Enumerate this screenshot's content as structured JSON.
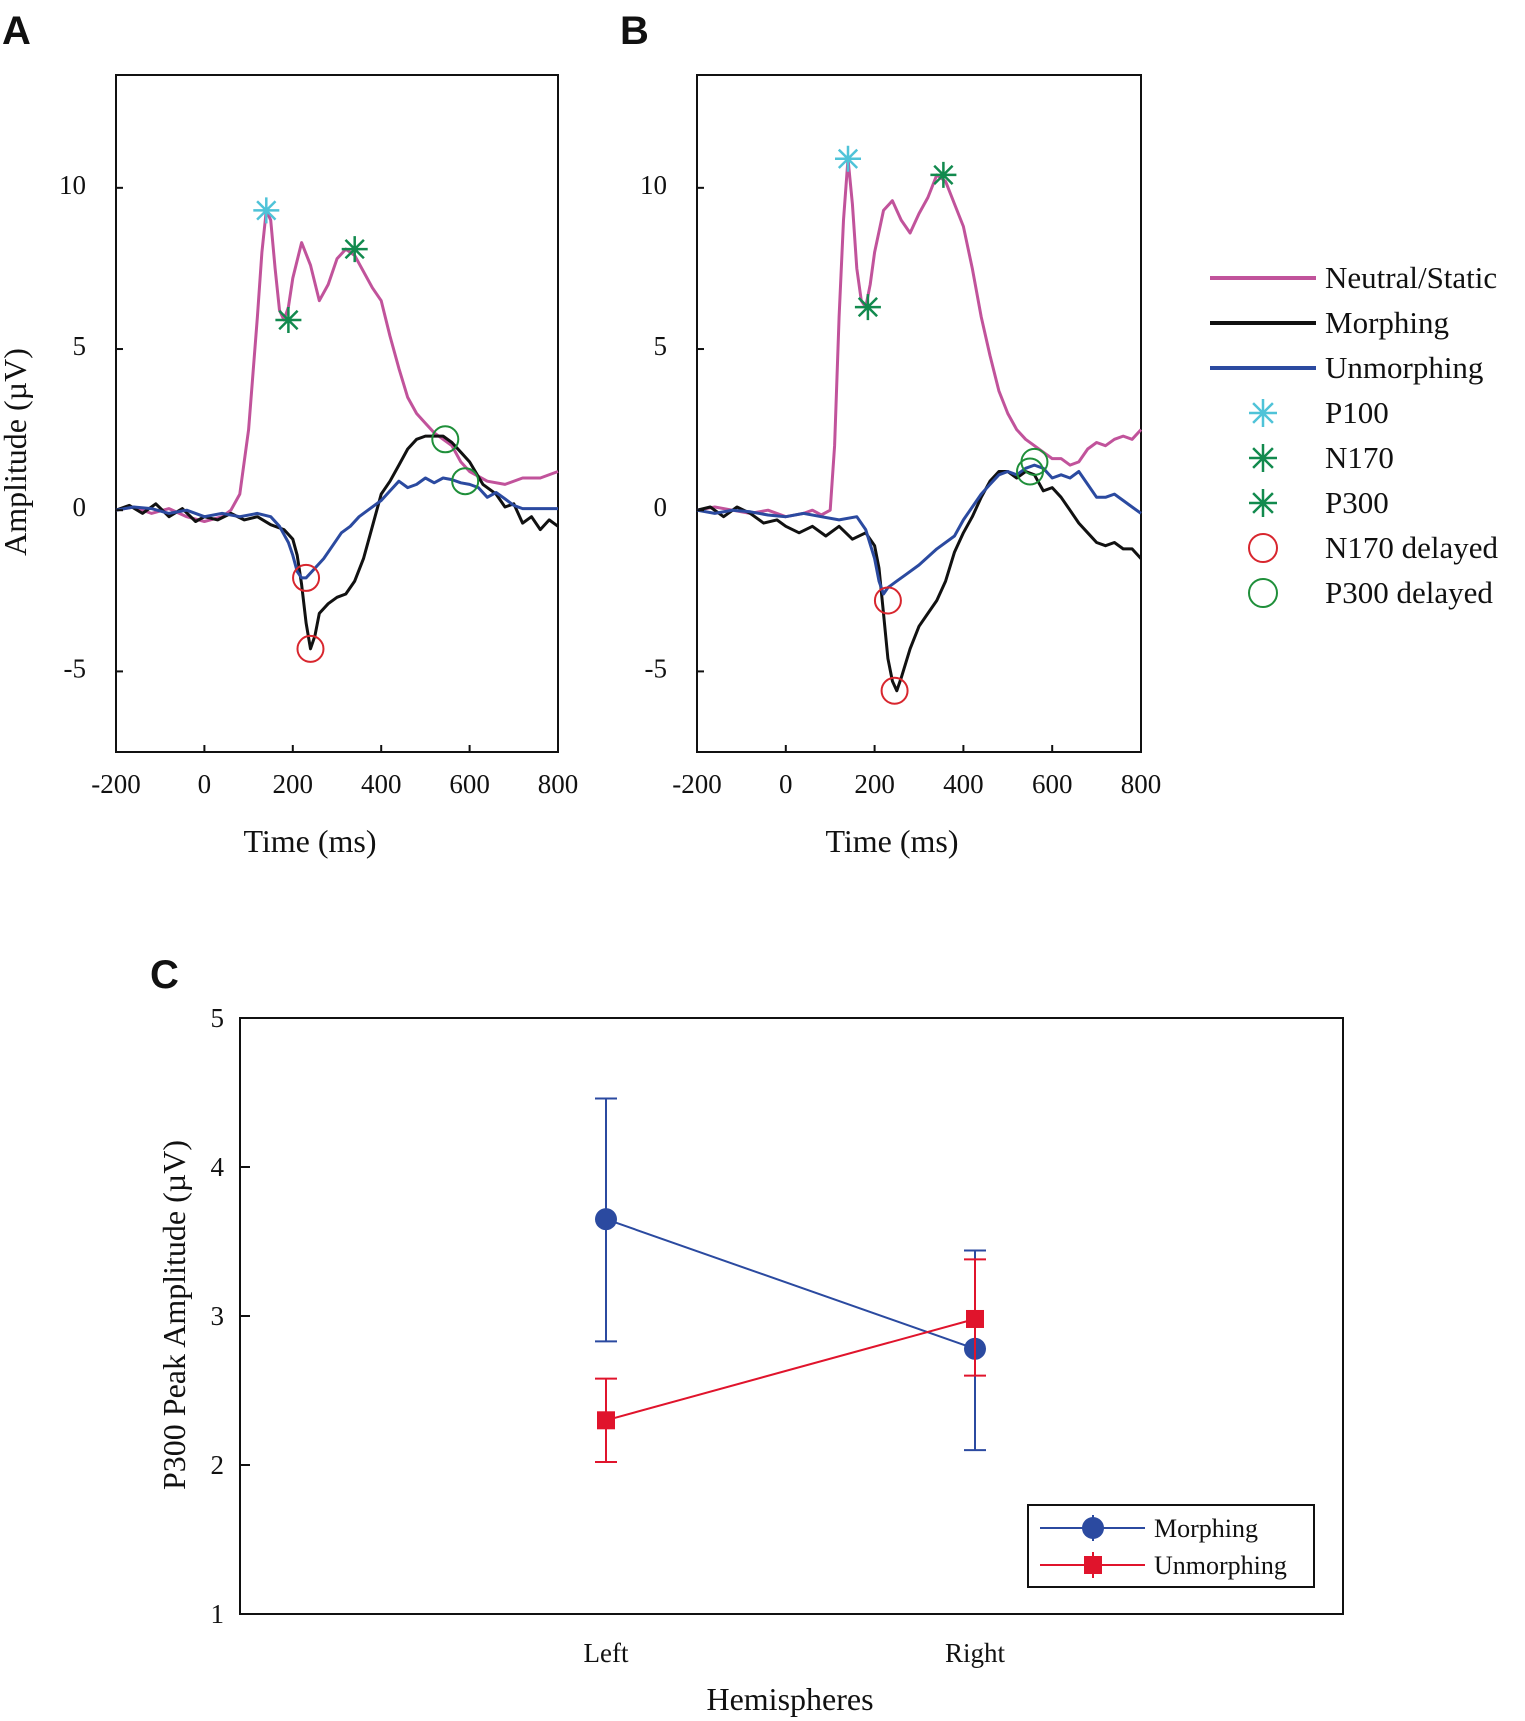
{
  "chart_data": [
    {
      "panel": "A",
      "type": "line",
      "xlabel": "Time (ms)",
      "ylabel": "Amplitude (µV)",
      "xlim": [
        -200,
        800
      ],
      "ylim": [
        -7.5,
        13.5
      ],
      "x_ticks": [
        -200,
        0,
        200,
        400,
        600,
        800
      ],
      "x_tick_labels": [
        "-200",
        "0",
        "200",
        "400",
        "600",
        "800"
      ],
      "y_ticks": [
        -5,
        0,
        5,
        10
      ],
      "y_tick_labels": [
        "-5",
        "0",
        "5",
        "10"
      ],
      "series": [
        {
          "name": "Neutral/Static",
          "color": "#c1539b",
          "x": [
            -200,
            -160,
            -120,
            -80,
            -40,
            0,
            40,
            60,
            80,
            100,
            120,
            130,
            140,
            150,
            160,
            170,
            180,
            190,
            200,
            220,
            240,
            260,
            280,
            300,
            320,
            340,
            380,
            400,
            420,
            440,
            460,
            480,
            500,
            520,
            540,
            560,
            580,
            600,
            640,
            680,
            720,
            760,
            800
          ],
          "y": [
            0,
            0.1,
            -0.1,
            0.05,
            -0.2,
            -0.35,
            -0.2,
            0,
            0.5,
            2.5,
            6,
            8,
            9.3,
            9,
            7.5,
            6.2,
            5.9,
            6.3,
            7.2,
            8.3,
            7.6,
            6.5,
            7,
            7.8,
            8.1,
            7.9,
            6.9,
            6.5,
            5.4,
            4.4,
            3.5,
            3,
            2.7,
            2.4,
            2.2,
            2,
            1.5,
            1.2,
            0.9,
            0.8,
            1,
            1,
            1.2
          ]
        },
        {
          "name": "Morphing",
          "color": "#111111",
          "x": [
            -200,
            -170,
            -140,
            -110,
            -80,
            -50,
            -20,
            0,
            30,
            60,
            90,
            120,
            150,
            180,
            200,
            210,
            220,
            230,
            240,
            250,
            260,
            280,
            300,
            320,
            340,
            360,
            380,
            400,
            420,
            440,
            460,
            480,
            500,
            520,
            540,
            560,
            580,
            600,
            630,
            660,
            680,
            700,
            720,
            740,
            760,
            780,
            800
          ],
          "y": [
            0,
            0.15,
            -0.1,
            0.2,
            -0.2,
            0.05,
            -0.35,
            -0.2,
            -0.3,
            -0.1,
            -0.3,
            -0.2,
            -0.45,
            -0.6,
            -0.9,
            -1.4,
            -2.3,
            -3.5,
            -4.3,
            -3.9,
            -3.2,
            -2.9,
            -2.7,
            -2.6,
            -2.2,
            -1.5,
            -0.5,
            0.5,
            0.9,
            1.4,
            1.9,
            2.2,
            2.3,
            2.3,
            2.3,
            2.1,
            1.8,
            1.5,
            0.8,
            0.5,
            0.1,
            0.2,
            -0.4,
            -0.2,
            -0.6,
            -0.3,
            -0.5
          ]
        },
        {
          "name": "Unmorphing",
          "color": "#2b4aa0",
          "x": [
            -200,
            -160,
            -120,
            -80,
            -40,
            0,
            40,
            80,
            120,
            150,
            170,
            190,
            200,
            210,
            220,
            230,
            250,
            270,
            290,
            310,
            330,
            350,
            370,
            400,
            420,
            440,
            460,
            480,
            500,
            520,
            540,
            560,
            580,
            600,
            620,
            640,
            660,
            680,
            700,
            720,
            760,
            800
          ],
          "y": [
            0,
            0.1,
            0.05,
            -0.1,
            0,
            -0.2,
            -0.1,
            -0.2,
            -0.1,
            -0.2,
            -0.5,
            -1,
            -1.4,
            -1.9,
            -2.1,
            -2.1,
            -1.8,
            -1.5,
            -1.1,
            -0.7,
            -0.5,
            -0.2,
            0,
            0.3,
            0.6,
            0.9,
            0.7,
            0.8,
            1,
            0.85,
            1,
            0.95,
            0.85,
            0.8,
            0.7,
            0.4,
            0.55,
            0.35,
            0.15,
            0.05,
            0.05,
            0.05
          ]
        }
      ],
      "markers": [
        {
          "type": "P100",
          "x": 140,
          "y": 9.3
        },
        {
          "type": "N170",
          "x": 190,
          "y": 5.9
        },
        {
          "type": "P300",
          "x": 340,
          "y": 8.1
        },
        {
          "type": "N170 delayed",
          "x": 230,
          "y": -2.1
        },
        {
          "type": "N170 delayed",
          "x": 240,
          "y": -4.3
        },
        {
          "type": "P300 delayed",
          "x": 545,
          "y": 2.2
        },
        {
          "type": "P300 delayed",
          "x": 590,
          "y": 0.9
        }
      ]
    },
    {
      "panel": "B",
      "type": "line",
      "xlabel": "Time (ms)",
      "ylabel": "",
      "xlim": [
        -200,
        800
      ],
      "ylim": [
        -7.5,
        13.5
      ],
      "x_ticks": [
        -200,
        0,
        200,
        400,
        600,
        800
      ],
      "x_tick_labels": [
        "-200",
        "0",
        "200",
        "400",
        "600",
        "800"
      ],
      "y_ticks": [
        -5,
        0,
        5,
        10
      ],
      "y_tick_labels": [
        "-5",
        "0",
        "5",
        "10"
      ],
      "series": [
        {
          "name": "Neutral/Static",
          "color": "#c1539b",
          "x": [
            -200,
            -160,
            -120,
            -80,
            -40,
            0,
            40,
            60,
            80,
            100,
            110,
            120,
            130,
            140,
            150,
            160,
            170,
            180,
            190,
            200,
            220,
            240,
            260,
            280,
            300,
            320,
            340,
            360,
            380,
            400,
            420,
            440,
            460,
            480,
            500,
            520,
            540,
            560,
            580,
            600,
            620,
            640,
            660,
            680,
            700,
            720,
            740,
            760,
            780,
            800
          ],
          "y": [
            0,
            0.1,
            0,
            -0.1,
            0,
            -0.2,
            -0.1,
            0,
            -0.15,
            0,
            2,
            6,
            9,
            10.9,
            9.5,
            7.5,
            6.5,
            6.3,
            7,
            8,
            9.3,
            9.6,
            9,
            8.6,
            9.2,
            9.7,
            10.4,
            10.2,
            9.5,
            8.8,
            7.5,
            6,
            4.8,
            3.7,
            3,
            2.5,
            2.2,
            2,
            1.8,
            1.6,
            1.6,
            1.4,
            1.5,
            1.9,
            2.1,
            2,
            2.2,
            2.3,
            2.2,
            2.5
          ]
        },
        {
          "name": "Morphing",
          "color": "#111111",
          "x": [
            -200,
            -170,
            -140,
            -110,
            -80,
            -50,
            -20,
            0,
            30,
            60,
            90,
            120,
            150,
            180,
            200,
            210,
            220,
            230,
            240,
            250,
            260,
            280,
            300,
            320,
            340,
            360,
            380,
            400,
            420,
            440,
            460,
            480,
            500,
            520,
            540,
            560,
            580,
            600,
            620,
            640,
            660,
            680,
            700,
            720,
            740,
            760,
            780,
            800
          ],
          "y": [
            0,
            0.1,
            -0.2,
            0.1,
            -0.1,
            -0.4,
            -0.3,
            -0.5,
            -0.7,
            -0.5,
            -0.8,
            -0.5,
            -0.9,
            -0.7,
            -1.1,
            -1.8,
            -3.2,
            -4.6,
            -5.3,
            -5.6,
            -5.2,
            -4.3,
            -3.6,
            -3.2,
            -2.8,
            -2.2,
            -1.3,
            -0.7,
            -0.2,
            0.4,
            0.9,
            1.2,
            1.2,
            1,
            1.2,
            1.1,
            0.6,
            0.7,
            0.4,
            0,
            -0.4,
            -0.7,
            -1,
            -1.1,
            -1,
            -1.2,
            -1.2,
            -1.5
          ]
        },
        {
          "name": "Unmorphing",
          "color": "#2b4aa0",
          "x": [
            -200,
            -160,
            -120,
            -80,
            -40,
            0,
            40,
            80,
            120,
            160,
            180,
            200,
            210,
            220,
            230,
            250,
            270,
            300,
            340,
            380,
            400,
            420,
            440,
            460,
            480,
            500,
            520,
            540,
            560,
            580,
            600,
            620,
            640,
            660,
            680,
            700,
            720,
            740,
            760,
            780,
            800
          ],
          "y": [
            0,
            -0.1,
            0,
            -0.05,
            -0.15,
            -0.2,
            -0.1,
            -0.2,
            -0.3,
            -0.2,
            -0.6,
            -1.5,
            -2.2,
            -2.6,
            -2.4,
            -2.2,
            -2,
            -1.7,
            -1.2,
            -0.8,
            -0.3,
            0.1,
            0.5,
            0.8,
            1.1,
            1.2,
            1.1,
            1.3,
            1.4,
            1.3,
            1,
            1.1,
            1,
            1.2,
            0.8,
            0.4,
            0.4,
            0.5,
            0.3,
            0.1,
            -0.1
          ]
        }
      ],
      "markers": [
        {
          "type": "P100",
          "x": 140,
          "y": 10.9
        },
        {
          "type": "N170",
          "x": 185,
          "y": 6.3
        },
        {
          "type": "P300",
          "x": 355,
          "y": 10.4
        },
        {
          "type": "N170 delayed",
          "x": 230,
          "y": -2.8
        },
        {
          "type": "N170 delayed",
          "x": 245,
          "y": -5.6
        },
        {
          "type": "P300 delayed",
          "x": 550,
          "y": 1.2
        },
        {
          "type": "P300 delayed",
          "x": 560,
          "y": 1.5
        }
      ]
    },
    {
      "panel": "C",
      "type": "line",
      "xlabel": "Hemispheres",
      "ylabel": "P300 Peak Amplitude (µV)",
      "categories": [
        "Left",
        "Right"
      ],
      "ylim": [
        1,
        5
      ],
      "y_ticks": [
        1,
        2,
        3,
        4,
        5
      ],
      "y_tick_labels": [
        "1",
        "2",
        "3",
        "4",
        "5"
      ],
      "series": [
        {
          "name": "Morphing",
          "color": "#2b4aa0",
          "marker": "circle",
          "values": [
            3.65,
            2.78
          ],
          "err_low": [
            2.83,
            2.1
          ],
          "err_high": [
            4.46,
            3.44
          ]
        },
        {
          "name": "Unmorphing",
          "color": "#e0142c",
          "marker": "square",
          "values": [
            2.3,
            2.98
          ],
          "err_low": [
            2.02,
            2.6
          ],
          "err_high": [
            2.58,
            3.38
          ]
        }
      ],
      "legend": [
        "Morphing",
        "Unmorphing"
      ],
      "legend_position": "bottom-right"
    }
  ],
  "figure": {
    "panel_labels": [
      "A",
      "B",
      "C"
    ],
    "legend": {
      "lines": [
        {
          "label": "Neutral/Static",
          "color": "#c1539b"
        },
        {
          "label": "Morphing",
          "color": "#111111"
        },
        {
          "label": "Unmorphing",
          "color": "#2b4aa0"
        }
      ],
      "markers": [
        {
          "label": "P100",
          "color": "#4fc3d8",
          "symbol": "star"
        },
        {
          "label": "N170",
          "color": "#128a4e",
          "symbol": "star"
        },
        {
          "label": "P300",
          "color": "#128a4e",
          "symbol": "star"
        },
        {
          "label": "N170 delayed",
          "color": "#d8262e",
          "symbol": "circle"
        },
        {
          "label": "P300 delayed",
          "color": "#1f8f3a",
          "symbol": "circle"
        }
      ]
    }
  }
}
